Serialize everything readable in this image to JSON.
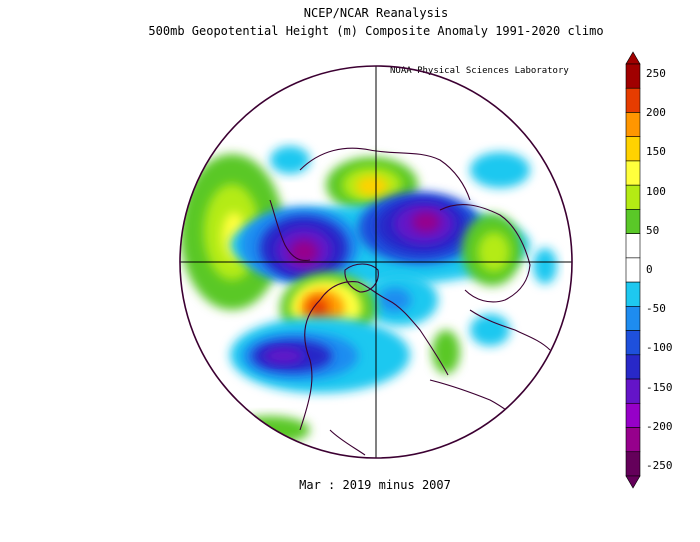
{
  "header": {
    "line1": "NCEP/NCAR Reanalysis",
    "line2": "500mb Geopotential Height (m) Composite Anomaly 1991-2020 climo",
    "credit": "NOAA Physical Sciences Laboratory"
  },
  "footer": {
    "subtitle": "Mar : 2019 minus 2007"
  },
  "colorbar": {
    "labels": [
      "250",
      "200",
      "150",
      "100",
      "50",
      "0",
      "-50",
      "-100",
      "-150",
      "-200",
      "-250"
    ],
    "colors": [
      "#a00000",
      "#e63c00",
      "#ff9600",
      "#ffd200",
      "#ffff3c",
      "#b4eb14",
      "#5ac828",
      "#ffffff",
      "#ffffff",
      "#1ec8f0",
      "#1e8cf0",
      "#1e50dc",
      "#2828c8",
      "#6414c8",
      "#9600c8",
      "#96008c",
      "#64005a"
    ]
  },
  "legend_colors": {
    "land_outline": "#3c0032",
    "positive_strong": "#e63c00",
    "positive": "#ffd200",
    "positive_weak": "#5ac828",
    "negative_weak": "#1ec8f0",
    "negative": "#2828c8",
    "negative_strong": "#9600c8"
  }
}
